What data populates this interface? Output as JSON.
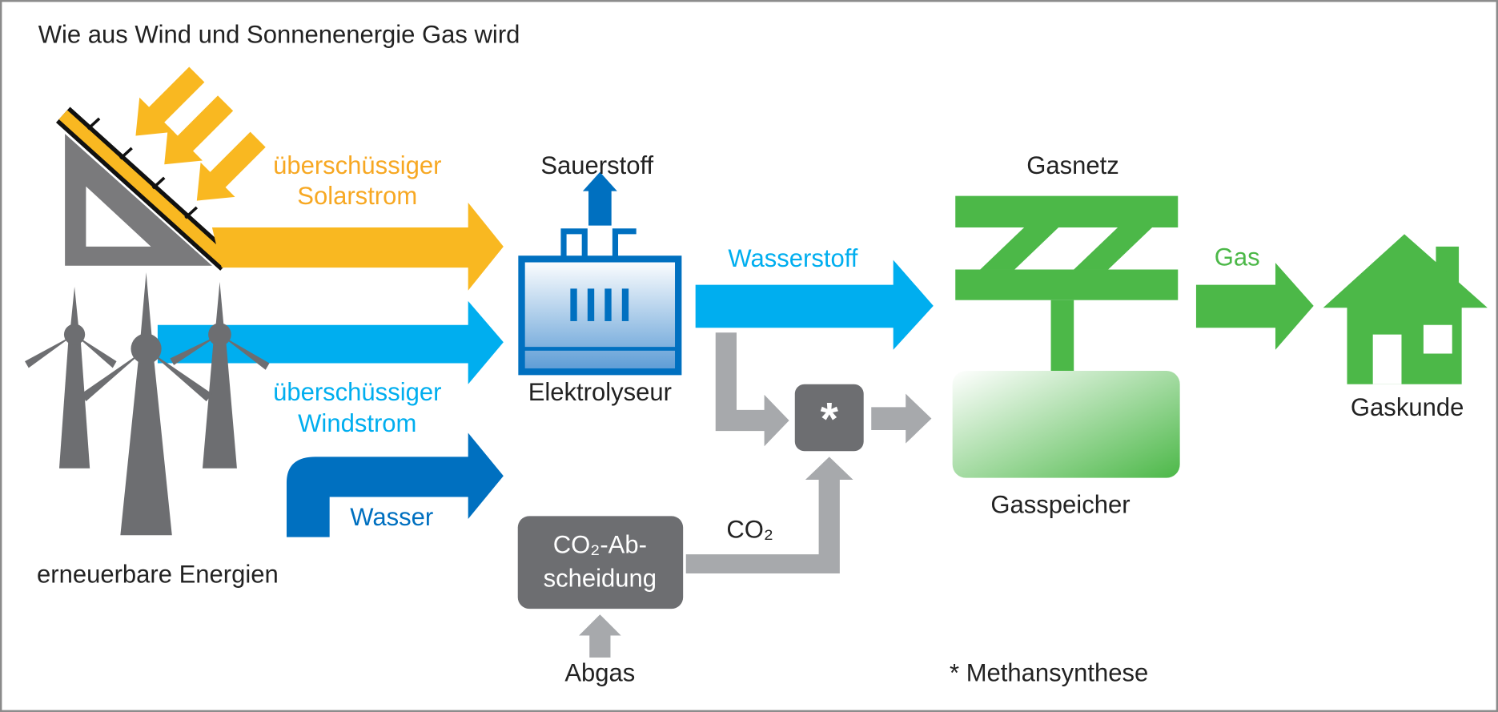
{
  "title": "Wie aus Wind und Sonnenenergie Gas wird",
  "sources": {
    "solar": [
      "überschüssiger",
      "Solarstrom"
    ],
    "wind": [
      "überschüssiger",
      "Windstrom"
    ],
    "water": "Wasser",
    "caption": "erneuerbare Energien"
  },
  "nodes": {
    "oxygen": "Sauerstoff",
    "electrolyser": "Elektrolyseur",
    "hydrogen": "Wasserstoff",
    "co2_capture": [
      "CO₂-Ab-",
      "scheidung"
    ],
    "co2": "CO₂",
    "exhaust": "Abgas",
    "synthesis_symbol": "*",
    "gas_grid": "Gasnetz",
    "gas_storage": "Gasspeicher",
    "gas": "Gas",
    "customer": "Gaskunde"
  },
  "footnote": "* Methansynthese"
}
